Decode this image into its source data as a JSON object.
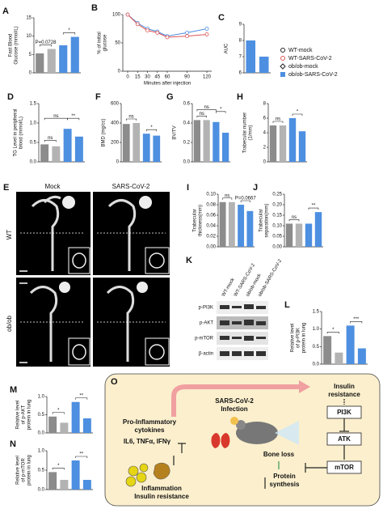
{
  "chart_data": [
    {
      "type": "bar",
      "panel": "A",
      "ylabel": [
        "Fast Blood",
        "Glucose (mmol/L)"
      ],
      "values": [
        5.3,
        6.5,
        7.5,
        9.8
      ],
      "colors": [
        "#8c8c8c",
        "#b3b3b3",
        "#4d8fe0",
        "#4d8fe0"
      ],
      "ylim": [
        0,
        15
      ],
      "yticks": [
        0,
        5,
        10,
        15
      ],
      "annotations": [
        {
          "text": "P=0.0728",
          "between": [
            0,
            1
          ]
        },
        {
          "text": "*",
          "between": [
            2,
            3
          ]
        }
      ]
    },
    {
      "type": "line",
      "panel": "B",
      "ylabel": [
        "% of initial",
        "glucose"
      ],
      "xlabel": "Minutes after injection",
      "x": [
        0,
        15,
        30,
        45,
        60,
        90,
        120
      ],
      "xlim": [
        0,
        120
      ],
      "xticks": [
        0,
        15,
        30,
        45,
        60,
        90,
        120
      ],
      "ylim": [
        0,
        100
      ],
      "yticks": [
        0,
        50,
        100
      ],
      "series": [
        {
          "color": "#4d8fe0",
          "values": [
            100,
            85,
            75,
            70,
            62,
            68,
            75
          ]
        },
        {
          "color": "#e05555",
          "values": [
            100,
            83,
            72,
            68,
            60,
            62,
            65
          ]
        }
      ]
    },
    {
      "type": "bar",
      "panel": "C",
      "ylabel": [
        "AUC"
      ],
      "values": [
        8.0,
        7.0
      ],
      "colors": [
        "#4d8fe0",
        "#4d8fe0"
      ],
      "ylim": [
        6,
        9
      ],
      "yticks": [
        6,
        7,
        8,
        9
      ]
    },
    {
      "type": "bar",
      "panel": "D",
      "ylabel": [
        "TG Level in peripheral",
        "blood (mmol/L)"
      ],
      "values": [
        0.45,
        0.4,
        0.85,
        0.65
      ],
      "colors": [
        "#8c8c8c",
        "#b3b3b3",
        "#4d8fe0",
        "#4d8fe0"
      ],
      "ylim": [
        0,
        1.5
      ],
      "yticks": [
        {
          "value": 0,
          "label": "0.0"
        },
        {
          "value": 0.5,
          "label": "0.5"
        },
        {
          "value": 1,
          "label": "1.0"
        },
        {
          "value": 1.5,
          "label": "1.5"
        }
      ],
      "annotations": [
        {
          "text": "ns",
          "between": [
            0,
            1
          ]
        },
        {
          "text": "ns",
          "between": [
            0,
            2
          ]
        },
        {
          "text": "**",
          "between": [
            2,
            3
          ]
        }
      ]
    },
    {
      "type": "bar",
      "panel": "F",
      "ylabel": [
        "BMD (mg/cc)"
      ],
      "values": [
        390,
        400,
        290,
        270
      ],
      "colors": [
        "#8c8c8c",
        "#b3b3b3",
        "#4d8fe0",
        "#4d8fe0"
      ],
      "ylim": [
        0,
        600
      ],
      "yticks": [
        0,
        200,
        400,
        600
      ],
      "annotations": [
        {
          "text": "ns",
          "between": [
            0,
            1
          ]
        },
        {
          "text": "*",
          "between": [
            2,
            3
          ]
        }
      ]
    },
    {
      "type": "bar",
      "panel": "G",
      "ylabel": [
        "BV/TV"
      ],
      "values": [
        0.43,
        0.43,
        0.41,
        0.3
      ],
      "colors": [
        "#8c8c8c",
        "#b3b3b3",
        "#4d8fe0",
        "#4d8fe0"
      ],
      "ylim": [
        0,
        0.6
      ],
      "yticks": [
        {
          "value": 0,
          "label": "0.0"
        },
        0.2,
        0.4,
        0.6
      ],
      "annotations": [
        {
          "text": "ns",
          "between": [
            0,
            1
          ]
        },
        {
          "text": "ns",
          "between": [
            0,
            2
          ]
        },
        {
          "text": "*",
          "between": [
            2,
            3
          ]
        }
      ]
    },
    {
      "type": "bar",
      "panel": "H",
      "ylabel": [
        "Trabecular number",
        "(1/mm)"
      ],
      "values": [
        5.0,
        5.0,
        6.0,
        4.2
      ],
      "colors": [
        "#8c8c8c",
        "#b3b3b3",
        "#4d8fe0",
        "#4d8fe0"
      ],
      "ylim": [
        0,
        8
      ],
      "yticks": [
        0,
        2,
        4,
        6,
        8
      ],
      "annotations": [
        {
          "text": "ns",
          "between": [
            0,
            1
          ]
        },
        {
          "text": "*",
          "between": [
            2,
            3
          ]
        }
      ]
    },
    {
      "type": "bar",
      "panel": "I",
      "ylabel": [
        "Trabecular",
        "thickness(mm)"
      ],
      "values": [
        0.085,
        0.085,
        0.08,
        0.068
      ],
      "colors": [
        "#8c8c8c",
        "#b3b3b3",
        "#4d8fe0",
        "#4d8fe0"
      ],
      "ylim": [
        0,
        0.1
      ],
      "yticks": [
        {
          "value": 0,
          "label": "0.00"
        },
        {
          "value": 0.02,
          "label": "0.02"
        },
        {
          "value": 0.04,
          "label": "0.04"
        },
        {
          "value": 0.06,
          "label": "0.06"
        },
        {
          "value": 0.08,
          "label": "0.08"
        },
        {
          "value": 0.1,
          "label": "0.10"
        }
      ],
      "annotations": [
        {
          "text": "ns",
          "between": [
            0,
            1
          ]
        },
        {
          "text": "P=0.0667",
          "between": [
            2,
            3
          ]
        }
      ]
    },
    {
      "type": "bar",
      "panel": "J",
      "ylabel": [
        "Trabecular",
        "separation(mm)"
      ],
      "values": [
        0.11,
        0.11,
        0.11,
        0.165
      ],
      "colors": [
        "#8c8c8c",
        "#b3b3b3",
        "#4d8fe0",
        "#4d8fe0"
      ],
      "ylim": [
        0,
        0.25
      ],
      "yticks": [
        {
          "value": 0,
          "label": "0.00"
        },
        {
          "value": 0.05,
          "label": "0.05"
        },
        {
          "value": 0.1,
          "label": "0.10"
        },
        {
          "value": 0.15,
          "label": "0.15"
        },
        {
          "value": 0.2,
          "label": "0.20"
        },
        {
          "value": 0.25,
          "label": "0.25"
        }
      ],
      "annotations": [
        {
          "text": "ns",
          "between": [
            0,
            1
          ]
        },
        {
          "text": "**",
          "between": [
            2,
            3
          ]
        }
      ]
    },
    {
      "type": "bar",
      "panel": "L",
      "ylabel": [
        "Relative level",
        "of p-PI3K",
        "protein in lung"
      ],
      "values": [
        0.8,
        0.33,
        1.1,
        0.45
      ],
      "colors": [
        "#8c8c8c",
        "#b3b3b3",
        "#4d8fe0",
        "#4d8fe0"
      ],
      "ylim": [
        0,
        1.5
      ],
      "yticks": [
        {
          "value": 0,
          "label": "0.0"
        },
        {
          "value": 0.5,
          "label": "0.5"
        },
        {
          "value": 1,
          "label": "1.0"
        },
        {
          "value": 1.5,
          "label": "1.5"
        }
      ],
      "annotations": [
        {
          "text": "*",
          "between": [
            0,
            1
          ]
        },
        {
          "text": "***",
          "between": [
            2,
            3
          ]
        }
      ]
    },
    {
      "type": "bar",
      "panel": "M",
      "ylabel": [
        "Relative level",
        "of p-AKT",
        "protein in lung"
      ],
      "values": [
        0.45,
        0.28,
        0.85,
        0.4
      ],
      "colors": [
        "#8c8c8c",
        "#b3b3b3",
        "#4d8fe0",
        "#4d8fe0"
      ],
      "ylim": [
        0,
        1
      ],
      "yticks": [
        {
          "value": 0,
          "label": "0.0"
        },
        {
          "value": 0.5,
          "label": "0.5"
        },
        {
          "value": 1,
          "label": "1.0"
        }
      ],
      "annotations": [
        {
          "text": "*",
          "between": [
            0,
            1
          ]
        },
        {
          "text": "**",
          "between": [
            2,
            3
          ]
        }
      ]
    },
    {
      "type": "bar",
      "panel": "N",
      "ylabel": [
        "Relative level",
        "of p-mTOR",
        "protein in lung"
      ],
      "values": [
        0.45,
        0.25,
        0.75,
        0.25
      ],
      "colors": [
        "#8c8c8c",
        "#b3b3b3",
        "#4d8fe0",
        "#4d8fe0"
      ],
      "ylim": [
        0,
        1
      ],
      "yticks": [
        {
          "value": 0,
          "label": "0.0"
        },
        {
          "value": 0.5,
          "label": "0.5"
        },
        {
          "value": 1,
          "label": "1.0"
        }
      ],
      "annotations": [
        {
          "text": "*",
          "between": [
            0,
            1
          ]
        },
        {
          "text": "**",
          "between": [
            2,
            3
          ]
        }
      ]
    }
  ],
  "legend": [
    {
      "name": "WT-mock",
      "color": "#222222",
      "marker": "circle"
    },
    {
      "name": "WT-SARS-CoV-2",
      "color": "#e05555",
      "marker": "circle"
    },
    {
      "name": "ob/ob-mock",
      "color": "#222222",
      "marker": "diamond"
    },
    {
      "name": "ob/ob-SARS-CoV-2",
      "color": "#4d8fe0",
      "marker": "square"
    }
  ],
  "images": {
    "panel": "E",
    "columns": [
      "Mock",
      "SARS-CoV-2"
    ],
    "rows": [
      "WT",
      "ob/ob"
    ]
  },
  "blot": {
    "panel": "K",
    "columns": [
      "WT-mock",
      "WT-SARS-CoV-2",
      "ob/ob-mock",
      "ob/ob-SARS-CoV-2"
    ],
    "rows": [
      "p-PI3K",
      "p-AKT",
      "p-mTOR",
      "β-actin"
    ]
  },
  "diagram": {
    "panel": "O",
    "insulin_resistance": [
      "Insulin",
      "resistance"
    ],
    "pi3k": "PI3K",
    "atk": "ATK",
    "mtor": "mTOR",
    "infection": [
      "SARS-CoV-2",
      "Infection"
    ],
    "cytokines": [
      "Pro-Inflammatory",
      "cytokines"
    ],
    "cytokine_list": "IL6, TNFα, IFNγ",
    "outcome": [
      "Inflammation",
      "Insulin resistance"
    ],
    "bone_loss": "Bone loss",
    "protein_synthesis": [
      "Protein",
      "synthesis"
    ]
  }
}
